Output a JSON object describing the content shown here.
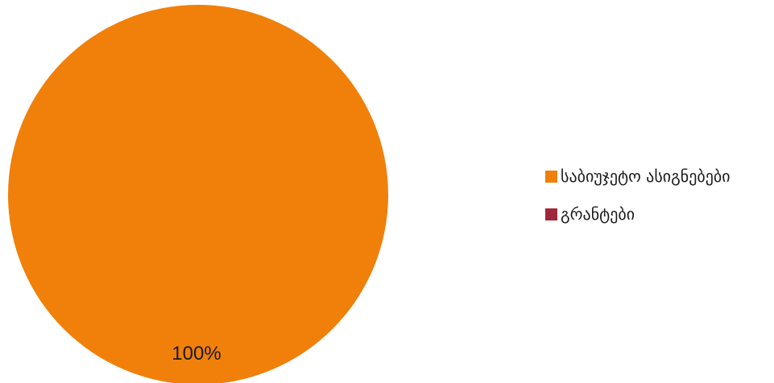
{
  "chart_data": {
    "type": "pie",
    "categories": [
      "საბიუჯეტო ასიგნებები",
      "გრანტები"
    ],
    "values": [
      100,
      0
    ],
    "data_labels": [
      "100%"
    ],
    "colors": [
      "#F0800A",
      "#A0283A"
    ],
    "legend_position": "right",
    "title": ""
  }
}
